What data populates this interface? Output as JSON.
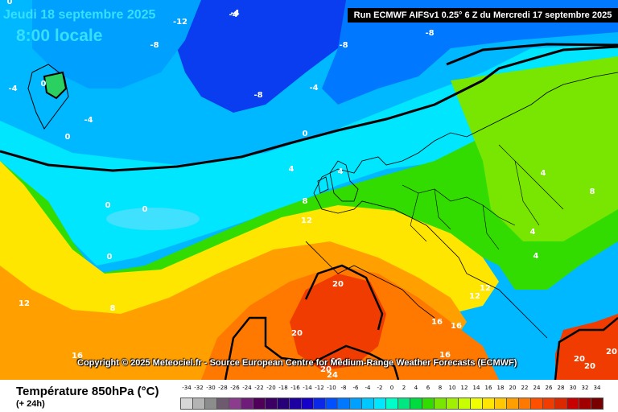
{
  "header": {
    "date": "Jeudi 18 septembre 2025",
    "time": "8:00 locale",
    "run": "Run ECMWF AIFSv1 0.25° 6 Z du Mercredi 17 septembre 2025"
  },
  "copyright": "Copyright © 2025 Meteociel.fr - Source European Centre for Medium-Range Weather Forecasts (ECMWF)",
  "footer": {
    "title": "Température 850hPa (°C)",
    "subtitle": "(+ 24h)"
  },
  "legend": {
    "values": [
      "-34",
      "-32",
      "-30",
      "-28",
      "-26",
      "-24",
      "-22",
      "-20",
      "-18",
      "-16",
      "-14",
      "-12",
      "-10",
      "-8",
      "-6",
      "-4",
      "-2",
      "0",
      "2",
      "4",
      "6",
      "8",
      "10",
      "12",
      "14",
      "16",
      "18",
      "20",
      "22",
      "24",
      "26",
      "28",
      "30",
      "32",
      "34"
    ],
    "colors": [
      "#d7d7d7",
      "#b4b4b4",
      "#8c8c8c",
      "#6e5a6e",
      "#8c3c8c",
      "#6e1e78",
      "#50005a",
      "#3c0064",
      "#280078",
      "#1e00a0",
      "#1400c8",
      "#0a28e6",
      "#0050ff",
      "#0078ff",
      "#00a0ff",
      "#00c8ff",
      "#00e6ff",
      "#00ffc8",
      "#00e680",
      "#00dc40",
      "#32dc00",
      "#78e600",
      "#a0f000",
      "#c8ff00",
      "#f0ff00",
      "#ffe600",
      "#ffc800",
      "#ffa000",
      "#ff7800",
      "#ff5000",
      "#f03c00",
      "#dc2800",
      "#c80000",
      "#a00000",
      "#780000"
    ]
  },
  "map_labels": [
    "-4",
    "-12",
    "-8",
    "-8",
    "-8",
    "-4",
    "-8",
    "-4",
    "-4",
    "0",
    "0",
    "0",
    "-4",
    "0",
    "4",
    "4",
    "8",
    "12",
    "12",
    "0",
    "0",
    "0",
    "8",
    "4",
    "8",
    "4",
    "4",
    "12",
    "12",
    "20",
    "20",
    "16",
    "16",
    "16",
    "20",
    "20",
    "16",
    "20",
    "20",
    "24",
    "20"
  ]
}
